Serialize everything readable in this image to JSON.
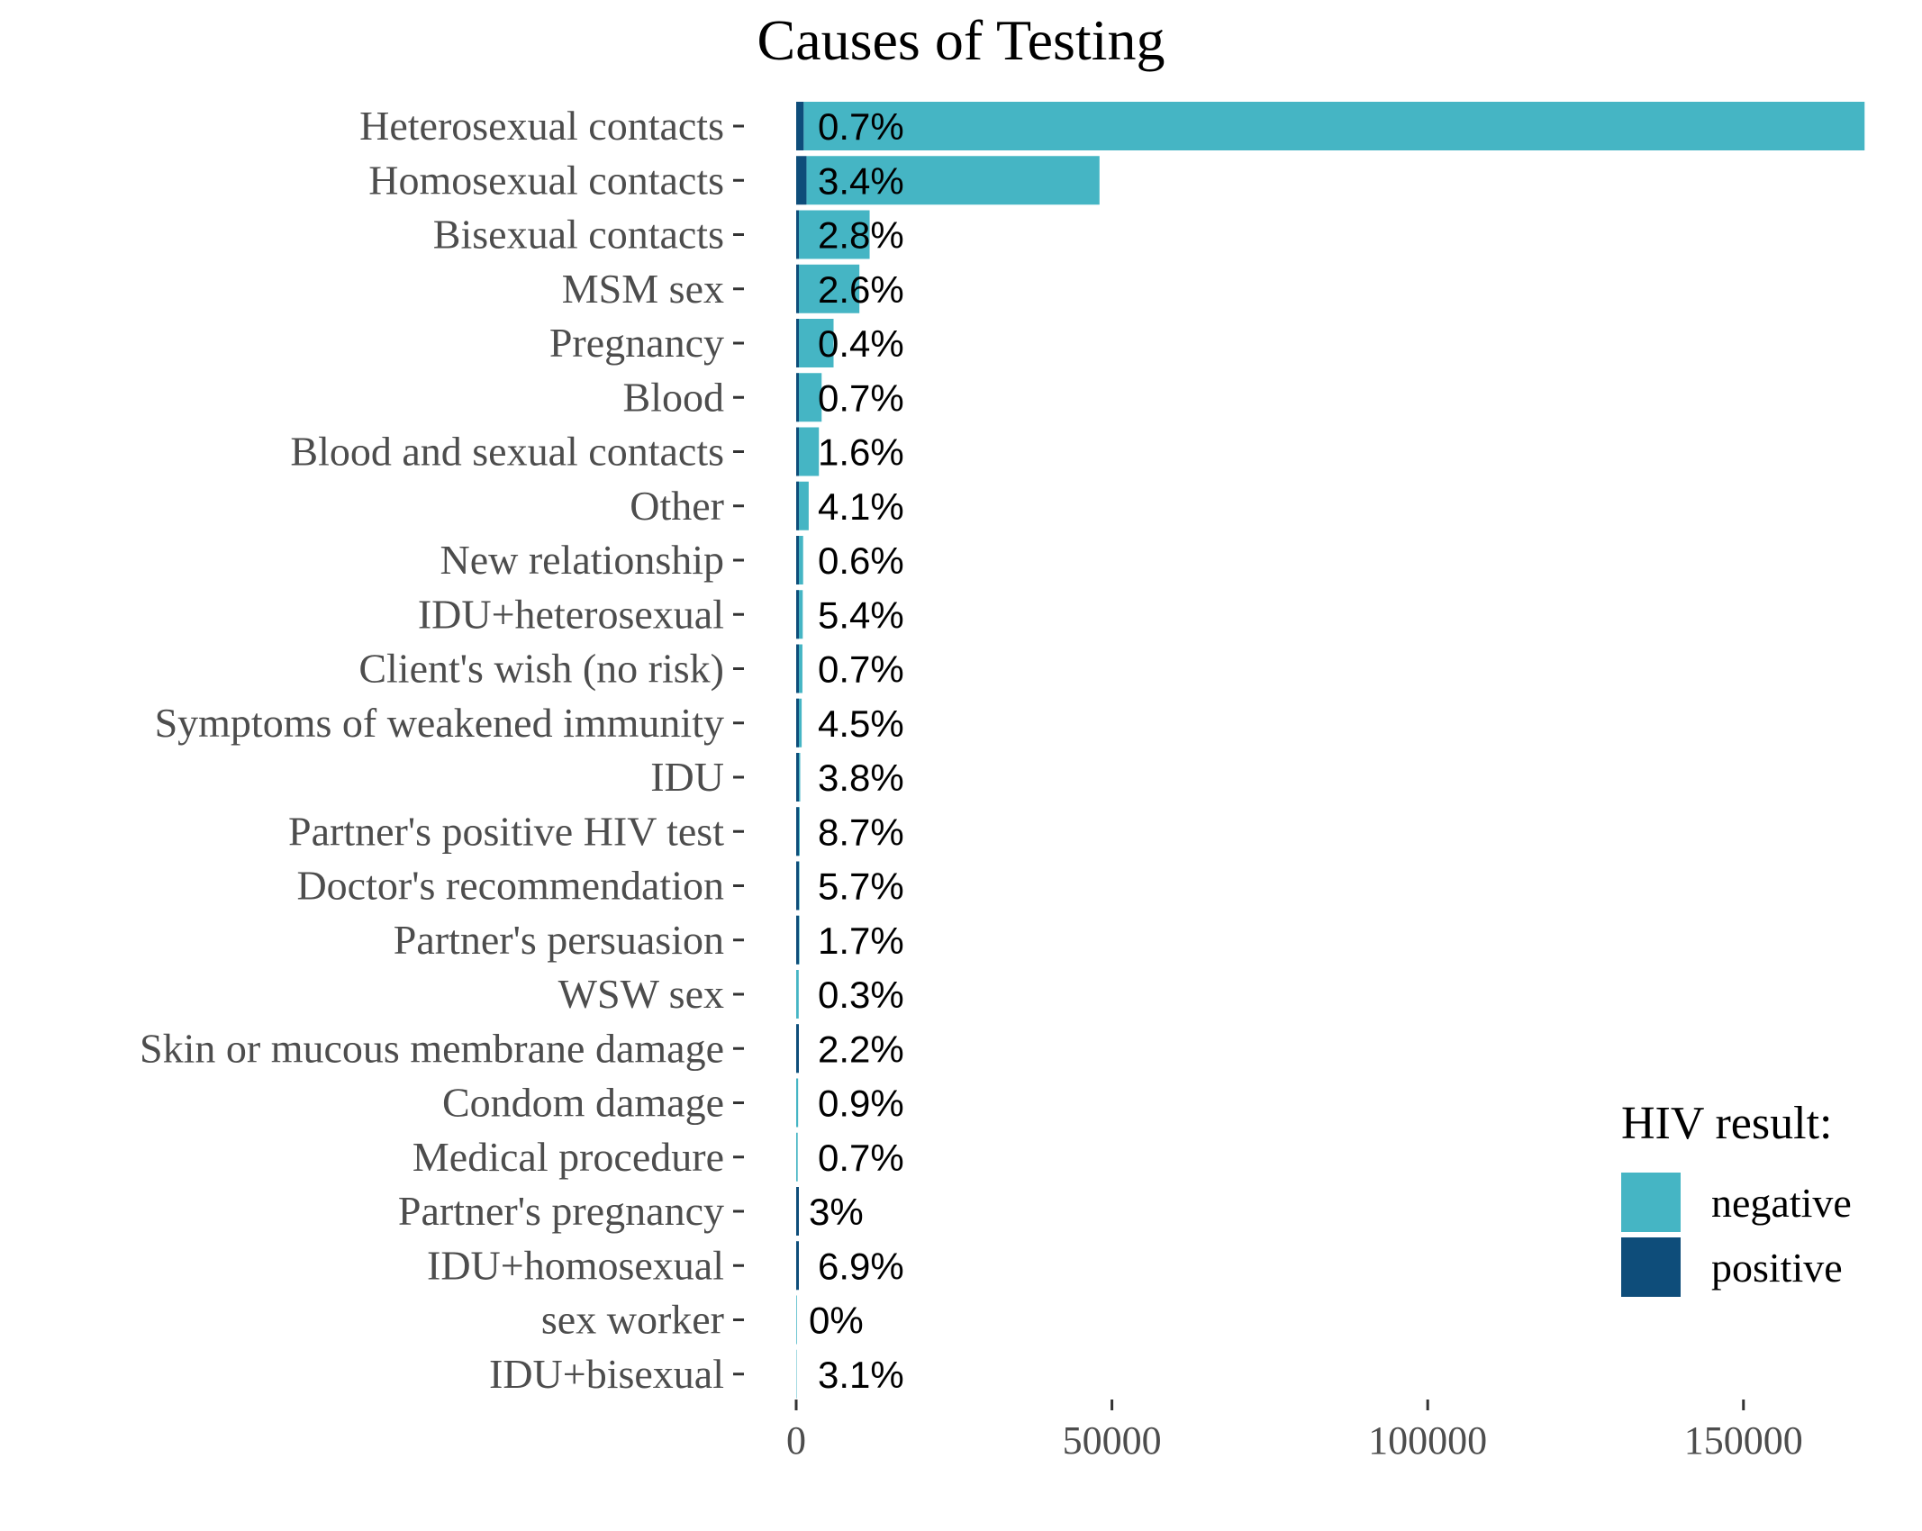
{
  "chart_data": {
    "type": "bar",
    "orientation": "horizontal",
    "stacked": true,
    "title": "Causes of Testing",
    "xlabel": "",
    "ylabel": "",
    "xlim": [
      0,
      170000
    ],
    "x_ticks": [
      0,
      50000,
      100000,
      150000
    ],
    "grid": false,
    "legend": {
      "title": "HIV result:",
      "position": "bottom-right"
    },
    "categories": [
      "Heterosexual contacts",
      "Homosexual contacts",
      "Bisexual contacts",
      "MSM sex",
      "Pregnancy",
      "Blood",
      "Blood and sexual contacts",
      "Other",
      "New relationship",
      "IDU+heterosexual",
      "Client's wish (no risk)",
      "Symptoms of weakened immunity",
      "IDU",
      "Partner's positive HIV test",
      "Doctor's recommendation",
      "Partner's persuasion",
      "WSW sex",
      "Skin or mucous membrane damage",
      "Condom damage",
      "Medical procedure",
      "Partner's pregnancy",
      "IDU+homosexual",
      "sex worker",
      "IDU+bisexual"
    ],
    "series": [
      {
        "name": "negative",
        "color": "#45b5c4",
        "values": [
          168000,
          46400,
          11300,
          9750,
          5900,
          4000,
          3540,
          1900,
          1090,
          980,
          980,
          830,
          620,
          520,
          490,
          510,
          400,
          370,
          310,
          240,
          220,
          160,
          110,
          70
        ]
      },
      {
        "name": "positive",
        "color": "#0e4d7a",
        "values": [
          1180,
          1630,
          330,
          260,
          20,
          30,
          60,
          80,
          10,
          60,
          10,
          40,
          20,
          50,
          30,
          10,
          0,
          10,
          0,
          0,
          10,
          10,
          0,
          0
        ]
      }
    ],
    "positive_share_labels": [
      "0.7%",
      "3.4%",
      "2.8%",
      "2.6%",
      "0.4%",
      "0.7%",
      "1.6%",
      "4.1%",
      "0.6%",
      "5.4%",
      "0.7%",
      "4.5%",
      "3.8%",
      "8.7%",
      "5.7%",
      "1.7%",
      "0.3%",
      "2.2%",
      "0.9%",
      "0.7%",
      "3%",
      "6.9%",
      "0%",
      "3.1%"
    ]
  }
}
